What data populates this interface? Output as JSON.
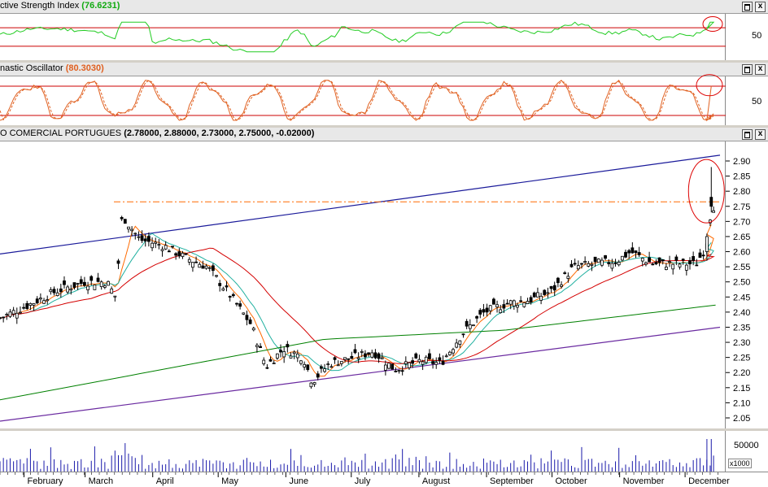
{
  "rsi_panel": {
    "title": "ctive Strength Index",
    "value": "(76.6231)",
    "scale_label": "50",
    "close_glyph": "x"
  },
  "stoch_panel": {
    "title": "nastic Oscillator",
    "value": "(80.3030)",
    "scale_label": "50",
    "close_glyph": "x"
  },
  "price_panel": {
    "title": "O COMERCIAL PORTUGUES",
    "value": "(2.78000, 2.88000, 2.73000, 2.75000, -0.02000)",
    "close_glyph": "x"
  },
  "volume_panel": {
    "scale_label": "50000",
    "multiplier": "x1000"
  },
  "colors": {
    "price_line": "#000000",
    "ma_short": "#ff6a00",
    "ma_mid": "#20b0a0",
    "ma_long": "#d40000",
    "ma_vlong": "#008000",
    "channel_upper": "#1a1a9a",
    "channel_lower": "#6a2aa0",
    "rsi_line": "#22cc22",
    "stoch_line": "#e06020",
    "band": "#cc0000",
    "volume": "#1a1aaa",
    "highlight": "#dd0000"
  },
  "chart_data": {
    "type": "candlestick",
    "title": "O COMERCIAL PORTUGUES",
    "x_months": [
      "February",
      "March",
      "April",
      "May",
      "June",
      "July",
      "August",
      "September",
      "October",
      "November",
      "December"
    ],
    "y_ticks": [
      2.05,
      2.1,
      2.15,
      2.2,
      2.25,
      2.3,
      2.35,
      2.4,
      2.45,
      2.5,
      2.55,
      2.6,
      2.65,
      2.7,
      2.75,
      2.8,
      2.85,
      2.9
    ],
    "ylim": [
      2.02,
      2.95
    ],
    "last_bar": {
      "open": 2.78,
      "high": 2.88,
      "low": 2.73,
      "close": 2.75,
      "change": -0.02
    },
    "resistance_level": 2.765,
    "close_series": [
      {
        "date": "Jan-20",
        "close": 2.38
      },
      {
        "date": "Feb-01",
        "close": 2.42
      },
      {
        "date": "Feb-15",
        "close": 2.47
      },
      {
        "date": "Feb-28",
        "close": 2.5
      },
      {
        "date": "Mar-10",
        "close": 2.5
      },
      {
        "date": "Mar-14",
        "close": 2.45
      },
      {
        "date": "Mar-17",
        "close": 2.72
      },
      {
        "date": "Mar-25",
        "close": 2.64
      },
      {
        "date": "Apr-05",
        "close": 2.62
      },
      {
        "date": "Apr-15",
        "close": 2.58
      },
      {
        "date": "Apr-25",
        "close": 2.55
      },
      {
        "date": "May-05",
        "close": 2.46
      },
      {
        "date": "May-15",
        "close": 2.36
      },
      {
        "date": "May-22",
        "close": 2.22
      },
      {
        "date": "May-30",
        "close": 2.28
      },
      {
        "date": "Jun-08",
        "close": 2.25
      },
      {
        "date": "Jun-12",
        "close": 2.17
      },
      {
        "date": "Jun-20",
        "close": 2.23
      },
      {
        "date": "Jul-01",
        "close": 2.25
      },
      {
        "date": "Jul-10",
        "close": 2.27
      },
      {
        "date": "Jul-20",
        "close": 2.21
      },
      {
        "date": "Aug-01",
        "close": 2.24
      },
      {
        "date": "Aug-10",
        "close": 2.23
      },
      {
        "date": "Aug-20",
        "close": 2.33
      },
      {
        "date": "Aug-30",
        "close": 2.4
      },
      {
        "date": "Sep-10",
        "close": 2.43
      },
      {
        "date": "Sep-20",
        "close": 2.44
      },
      {
        "date": "Sep-30",
        "close": 2.47
      },
      {
        "date": "Oct-10",
        "close": 2.55
      },
      {
        "date": "Oct-20",
        "close": 2.56
      },
      {
        "date": "Oct-30",
        "close": 2.57
      },
      {
        "date": "Nov-05",
        "close": 2.6
      },
      {
        "date": "Nov-15",
        "close": 2.56
      },
      {
        "date": "Nov-25",
        "close": 2.56
      },
      {
        "date": "Dec-05",
        "close": 2.56
      },
      {
        "date": "Dec-10",
        "close": 2.62
      },
      {
        "date": "Dec-12",
        "close": 2.75
      }
    ],
    "rsi_last": 76.6231,
    "stochastic_last": 80.303,
    "rsi_bands": [
      30,
      70
    ],
    "stochastic_bands": [
      20,
      80
    ]
  }
}
